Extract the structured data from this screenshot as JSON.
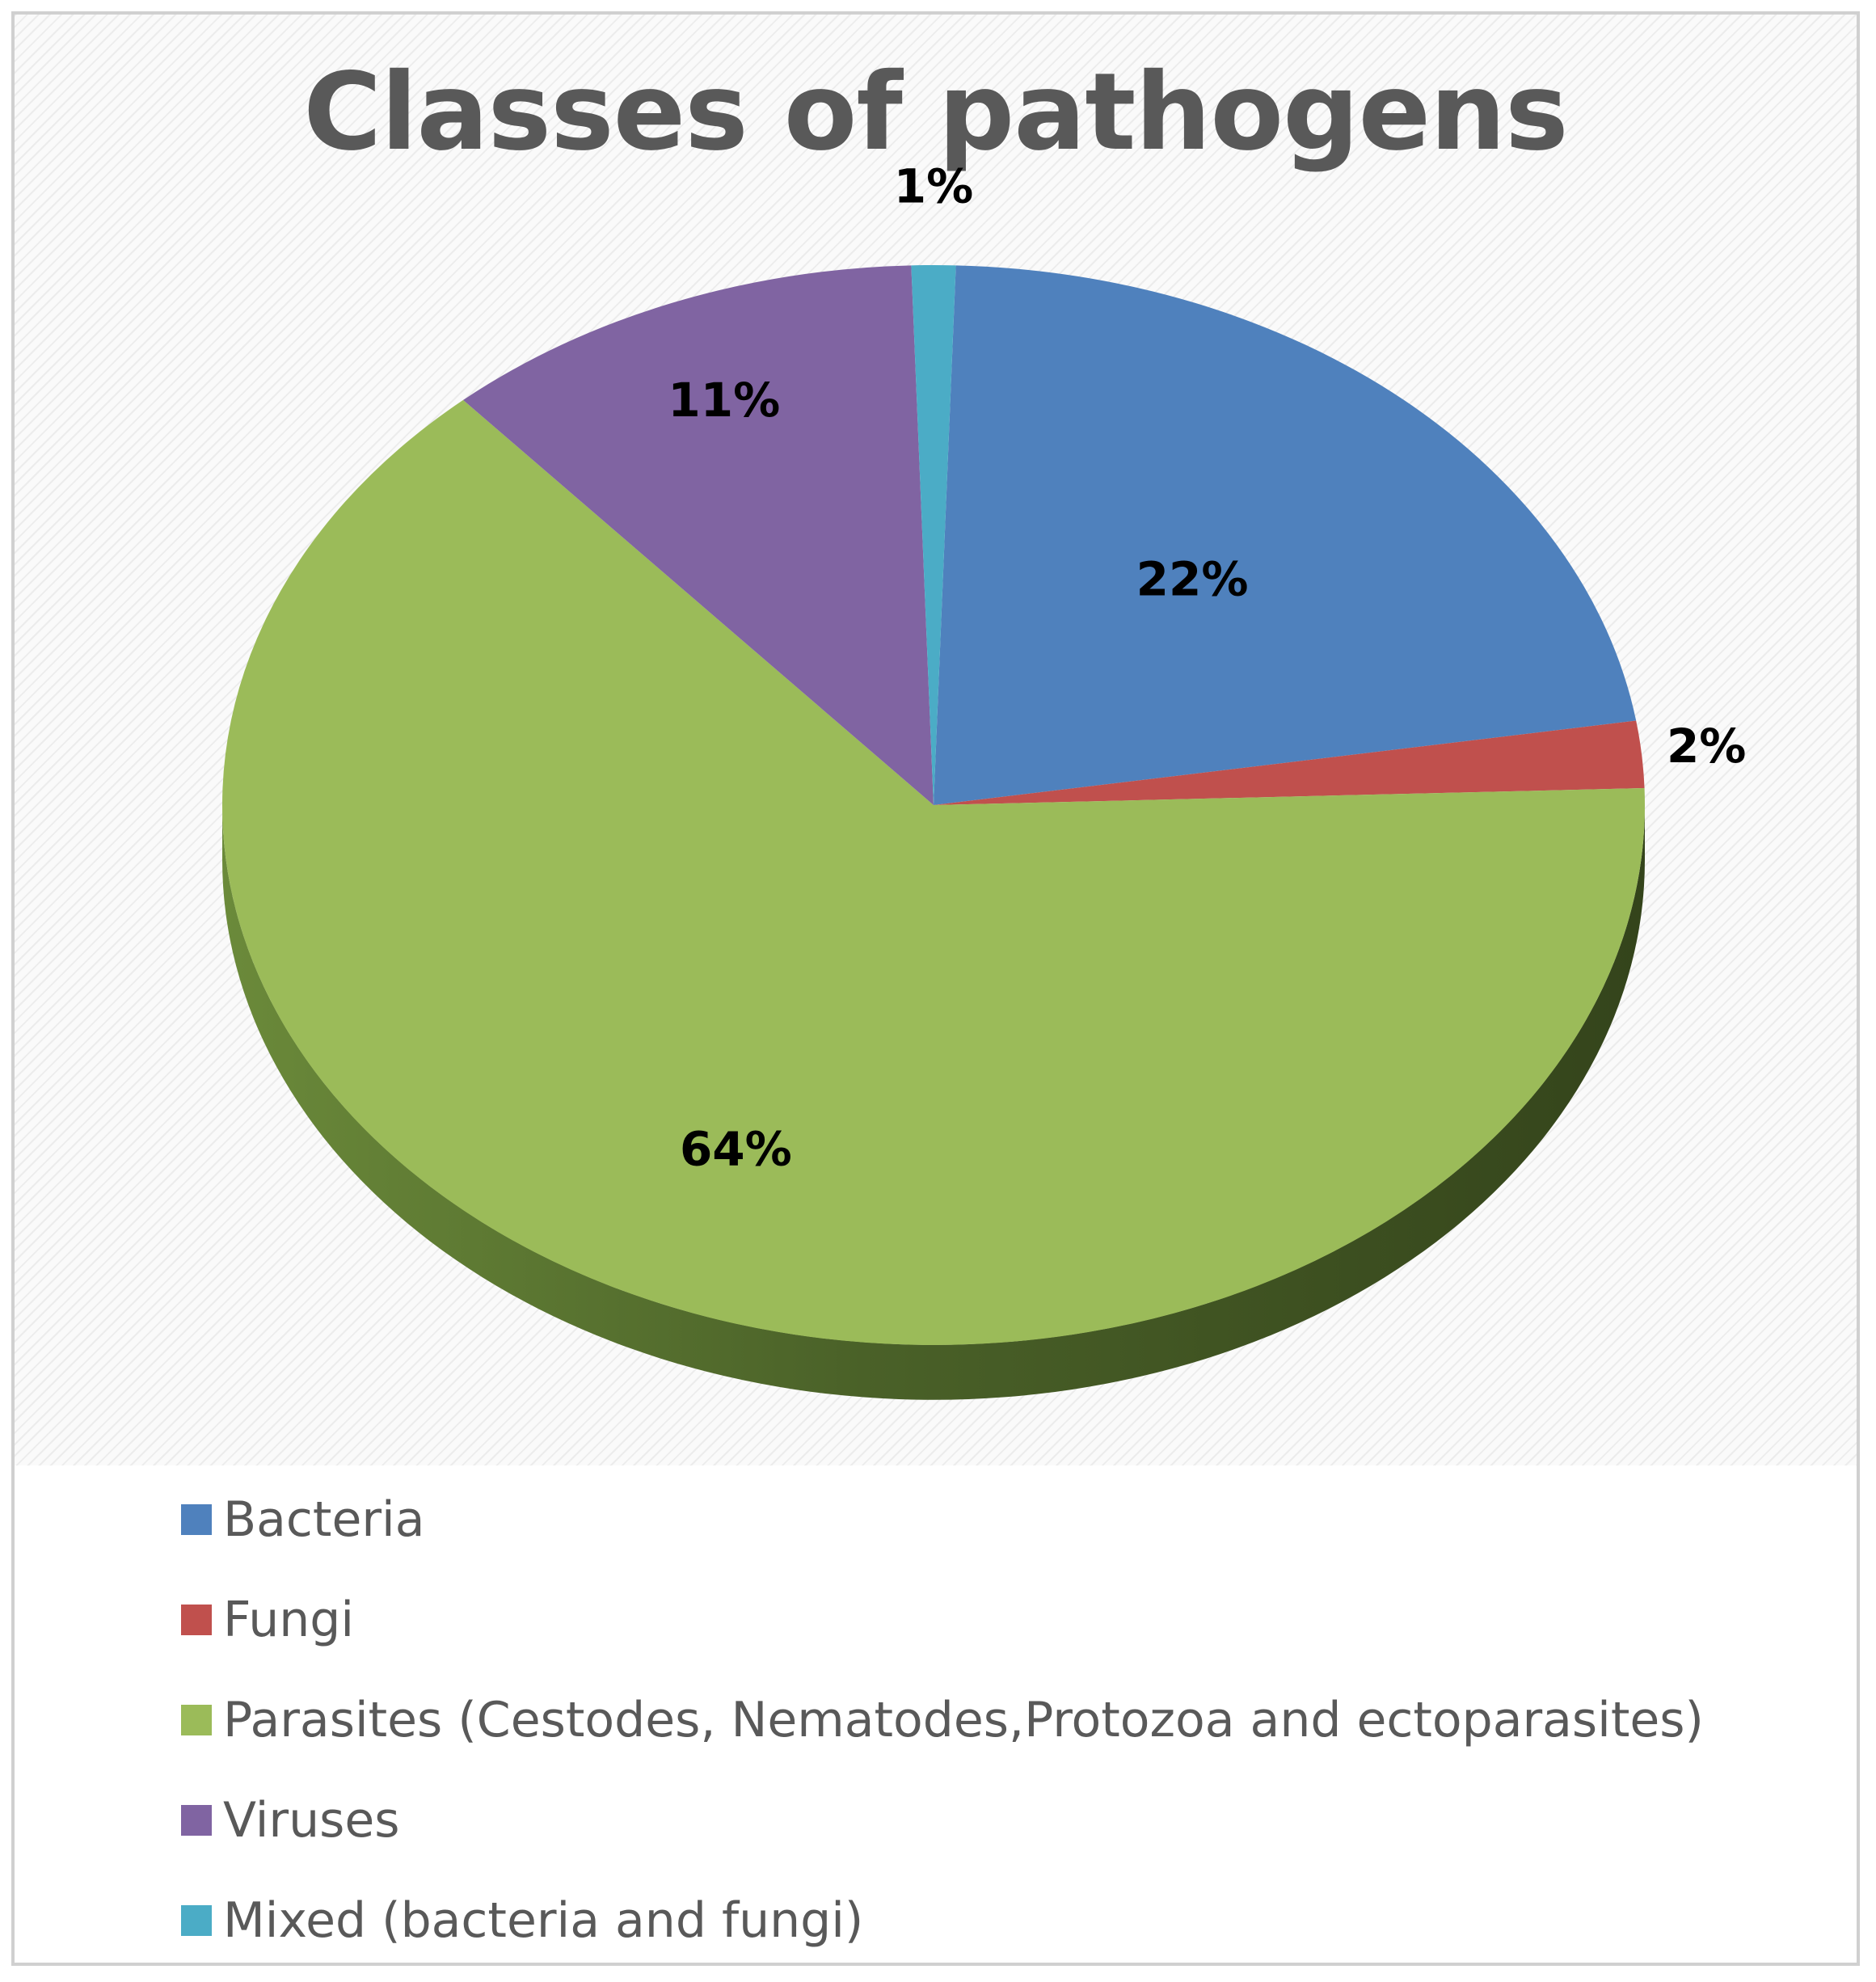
{
  "chart_data": {
    "type": "pie",
    "title": "Classes of pathogens",
    "slices": [
      {
        "name": "Bacteria",
        "value": 22,
        "label": "22%",
        "color": "#4F81BD"
      },
      {
        "name": "Fungi",
        "value": 2,
        "label": "2%",
        "color": "#C0504D"
      },
      {
        "name": "Parasites (Cestodes, Nematodes,Protozoa and ectoparasites)",
        "value": 64,
        "label": "64%",
        "color": "#9BBB59"
      },
      {
        "name": "Viruses",
        "value": 11,
        "label": "11%",
        "color": "#8064A2"
      },
      {
        "name": "Mixed (bacteria and fungi)",
        "value": 1,
        "label": "1%",
        "color": "#4BACC6"
      }
    ],
    "legend_position": "bottom",
    "style": "3d"
  }
}
